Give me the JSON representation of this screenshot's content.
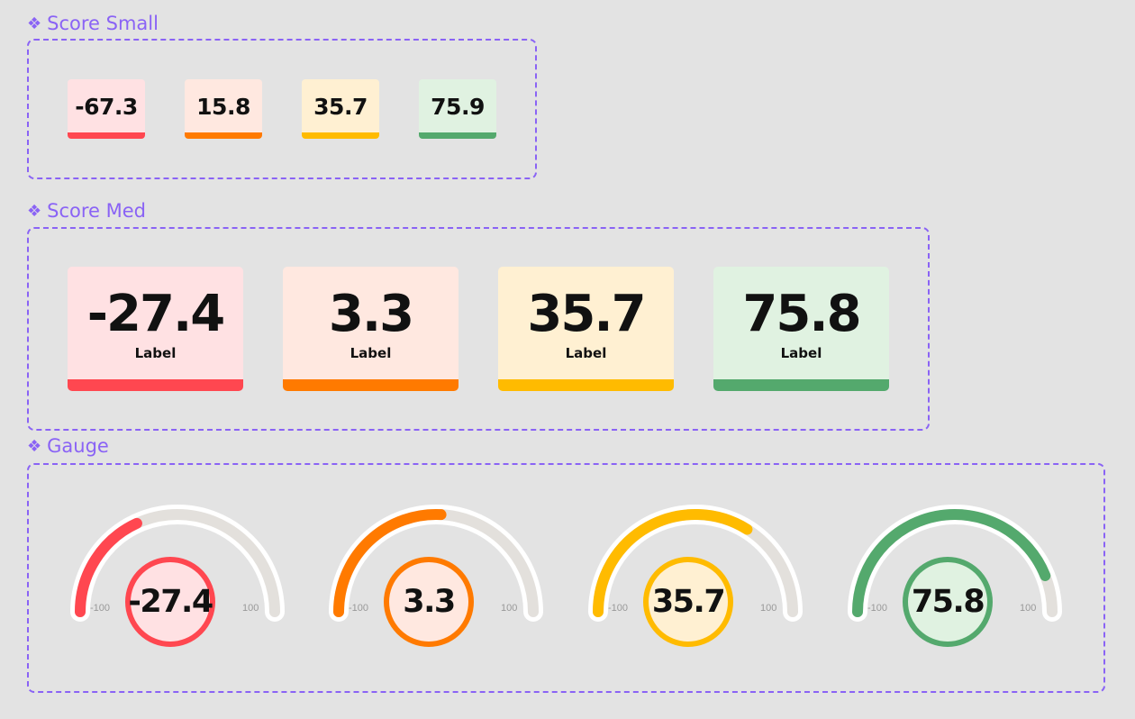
{
  "sections": {
    "small": {
      "title": "Score Small",
      "scores": [
        {
          "value": "-67.3",
          "bg": "#ffe1e3",
          "accent": "#ff4750"
        },
        {
          "value": "15.8",
          "bg": "#ffe8e0",
          "accent": "#ff7a00"
        },
        {
          "value": "35.7",
          "bg": "#fff0d2",
          "accent": "#ffbb00"
        },
        {
          "value": "75.9",
          "bg": "#e0f2e1",
          "accent": "#54a96d"
        }
      ]
    },
    "med": {
      "title": "Score Med",
      "scores": [
        {
          "value": "-27.4",
          "label": "Label",
          "bg": "#ffe1e3",
          "accent": "#ff4750"
        },
        {
          "value": "3.3",
          "label": "Label",
          "bg": "#ffe8e0",
          "accent": "#ff7a00"
        },
        {
          "value": "35.7",
          "label": "Label",
          "bg": "#fff0d2",
          "accent": "#ffbb00"
        },
        {
          "value": "75.8",
          "label": "Label",
          "bg": "#e0f2e1",
          "accent": "#54a96d"
        }
      ]
    },
    "gauge": {
      "title": "Gauge",
      "min_label": "-100",
      "max_label": "100",
      "range": [
        -100,
        100
      ],
      "gauges": [
        {
          "value": "-27.4",
          "level": -27.4,
          "bg": "#ffe1e3",
          "accent": "#ff4750"
        },
        {
          "value": "3.3",
          "level": 3.3,
          "bg": "#ffe8e0",
          "accent": "#ff7a00"
        },
        {
          "value": "35.7",
          "level": 35.7,
          "bg": "#fff0d2",
          "accent": "#ffbb00"
        },
        {
          "value": "75.8",
          "level": 75.8,
          "bg": "#e0f2e1",
          "accent": "#54a96d"
        }
      ]
    }
  },
  "colors": {
    "frame": "#8a63f5",
    "track": "#e3e0dc",
    "track_outline": "#ffffff"
  },
  "icons": {
    "section": "component-diamond-icon"
  }
}
